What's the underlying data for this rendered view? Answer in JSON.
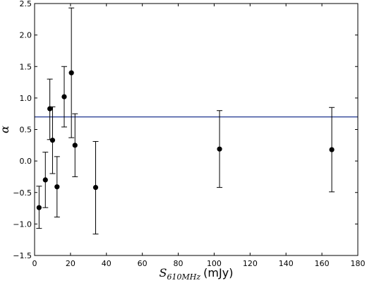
{
  "chart_data": {
    "type": "scatter",
    "xlim": [
      0,
      180
    ],
    "ylim": [
      -1.5,
      2.5
    ],
    "xticks": [
      0,
      20,
      40,
      60,
      80,
      100,
      120,
      140,
      160,
      180
    ],
    "yticks": [
      -1.5,
      -1.0,
      -0.5,
      0.0,
      0.5,
      1.0,
      1.5,
      2.0,
      2.5
    ],
    "xticklabels": [
      "0",
      "20",
      "40",
      "60",
      "80",
      "100",
      "120",
      "140",
      "160",
      "180"
    ],
    "yticklabels": [
      "−1.5",
      "−1.0",
      "−0.5",
      "0.0",
      "0.5",
      "1.0",
      "1.5",
      "2.0",
      "2.5"
    ],
    "xlabel": {
      "symbol": "S",
      "subscript": "610MHz",
      "unit": "(mJy)"
    },
    "ylabel": "α",
    "grid": false,
    "reference_line": {
      "y": 0.7,
      "color": "#3b4f9e"
    },
    "marker_color": "#000000",
    "points": [
      {
        "x": 2.5,
        "y": -0.74,
        "yerr_low": -1.07,
        "yerr_high": -0.4
      },
      {
        "x": 6.0,
        "y": -0.3,
        "yerr_low": -0.74,
        "yerr_high": 0.14
      },
      {
        "x": 8.5,
        "y": 0.83,
        "yerr_low": 0.34,
        "yerr_high": 1.3
      },
      {
        "x": 10.0,
        "y": 0.33,
        "yerr_low": -0.2,
        "yerr_high": 0.86
      },
      {
        "x": 12.5,
        "y": -0.41,
        "yerr_low": -0.89,
        "yerr_high": 0.07
      },
      {
        "x": 16.5,
        "y": 1.02,
        "yerr_low": 0.54,
        "yerr_high": 1.5
      },
      {
        "x": 20.5,
        "y": 1.4,
        "yerr_low": 0.37,
        "yerr_high": 2.43
      },
      {
        "x": 22.5,
        "y": 0.25,
        "yerr_low": -0.25,
        "yerr_high": 0.75
      },
      {
        "x": 34.0,
        "y": -0.42,
        "yerr_low": -1.16,
        "yerr_high": 0.31
      },
      {
        "x": 103.0,
        "y": 0.19,
        "yerr_low": -0.42,
        "yerr_high": 0.8
      },
      {
        "x": 165.5,
        "y": 0.18,
        "yerr_low": -0.49,
        "yerr_high": 0.85
      }
    ]
  }
}
